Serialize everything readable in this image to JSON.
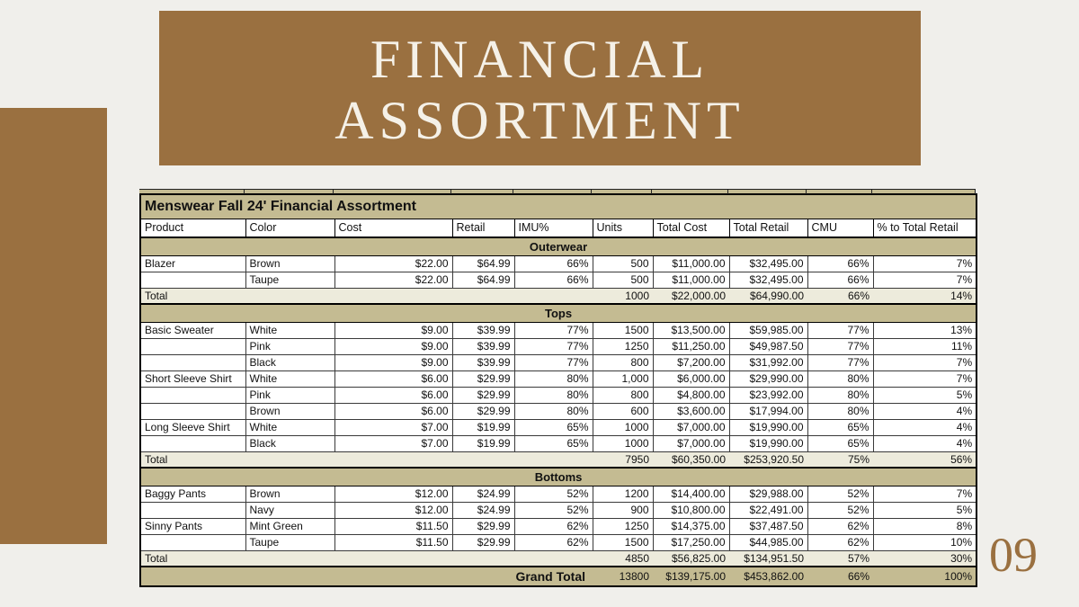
{
  "slide": {
    "title_line1": "FINANCIAL",
    "title_line2": "ASSORTMENT",
    "page_number": "09"
  },
  "table": {
    "title": "Menswear Fall 24' Financial Assortment",
    "columns": [
      "Product",
      "Color",
      "Cost",
      "Retail",
      "IMU%",
      "Units",
      "Total Cost",
      "Total Retail",
      "CMU",
      "% to Total Retail"
    ],
    "total_label": "Total",
    "grand_total_label": "Grand Total",
    "sections": [
      {
        "name": "Outerwear",
        "rows": [
          [
            "Blazer",
            "Brown",
            "$22.00",
            "$64.99",
            "66%",
            "500",
            "$11,000.00",
            "$32,495.00",
            "66%",
            "7%"
          ],
          [
            "",
            "Taupe",
            "$22.00",
            "$64.99",
            "66%",
            "500",
            "$11,000.00",
            "$32,495.00",
            "66%",
            "7%"
          ]
        ],
        "total": [
          "1000",
          "$22,000.00",
          "$64,990.00",
          "66%",
          "14%"
        ]
      },
      {
        "name": "Tops",
        "rows": [
          [
            "Basic Sweater",
            "White",
            "$9.00",
            "$39.99",
            "77%",
            "1500",
            "$13,500.00",
            "$59,985.00",
            "77%",
            "13%"
          ],
          [
            "",
            "Pink",
            "$9.00",
            "$39.99",
            "77%",
            "1250",
            "$11,250.00",
            "$49,987.50",
            "77%",
            "11%"
          ],
          [
            "",
            "Black",
            "$9.00",
            "$39.99",
            "77%",
            "800",
            "$7,200.00",
            "$31,992.00",
            "77%",
            "7%"
          ],
          [
            "Short Sleeve Shirt",
            "White",
            "$6.00",
            "$29.99",
            "80%",
            "1,000",
            "$6,000.00",
            "$29,990.00",
            "80%",
            "7%"
          ],
          [
            "",
            "Pink",
            "$6.00",
            "$29.99",
            "80%",
            "800",
            "$4,800.00",
            "$23,992.00",
            "80%",
            "5%"
          ],
          [
            "",
            "Brown",
            "$6.00",
            "$29.99",
            "80%",
            "600",
            "$3,600.00",
            "$17,994.00",
            "80%",
            "4%"
          ],
          [
            "Long Sleeve Shirt",
            "White",
            "$7.00",
            "$19.99",
            "65%",
            "1000",
            "$7,000.00",
            "$19,990.00",
            "65%",
            "4%"
          ],
          [
            "",
            "Black",
            "$7.00",
            "$19.99",
            "65%",
            "1000",
            "$7,000.00",
            "$19,990.00",
            "65%",
            "4%"
          ]
        ],
        "total": [
          "7950",
          "$60,350.00",
          "$253,920.50",
          "75%",
          "56%"
        ]
      },
      {
        "name": "Bottoms",
        "rows": [
          [
            "Baggy Pants",
            "Brown",
            "$12.00",
            "$24.99",
            "52%",
            "1200",
            "$14,400.00",
            "$29,988.00",
            "52%",
            "7%"
          ],
          [
            "",
            "Navy",
            "$12.00",
            "$24.99",
            "52%",
            "900",
            "$10,800.00",
            "$22,491.00",
            "52%",
            "5%"
          ],
          [
            "Sinny Pants",
            "Mint Green",
            "$11.50",
            "$29.99",
            "62%",
            "1250",
            "$14,375.00",
            "$37,487.50",
            "62%",
            "8%"
          ],
          [
            "",
            "Taupe",
            "$11.50",
            "$29.99",
            "62%",
            "1500",
            "$17,250.00",
            "$44,985.00",
            "62%",
            "10%"
          ]
        ],
        "total": [
          "4850",
          "$56,825.00",
          "$134,951.50",
          "57%",
          "30%"
        ]
      }
    ],
    "grand_total": [
      "13800",
      "$139,175.00",
      "$453,862.00",
      "66%",
      "100%"
    ]
  },
  "colors": {
    "brown": "#9a7040",
    "khaki": "#c4bb92",
    "cream": "#edebdc",
    "bg": "#f0efeb",
    "banner-text": "#f5f1e8",
    "table-text": "#111111"
  }
}
